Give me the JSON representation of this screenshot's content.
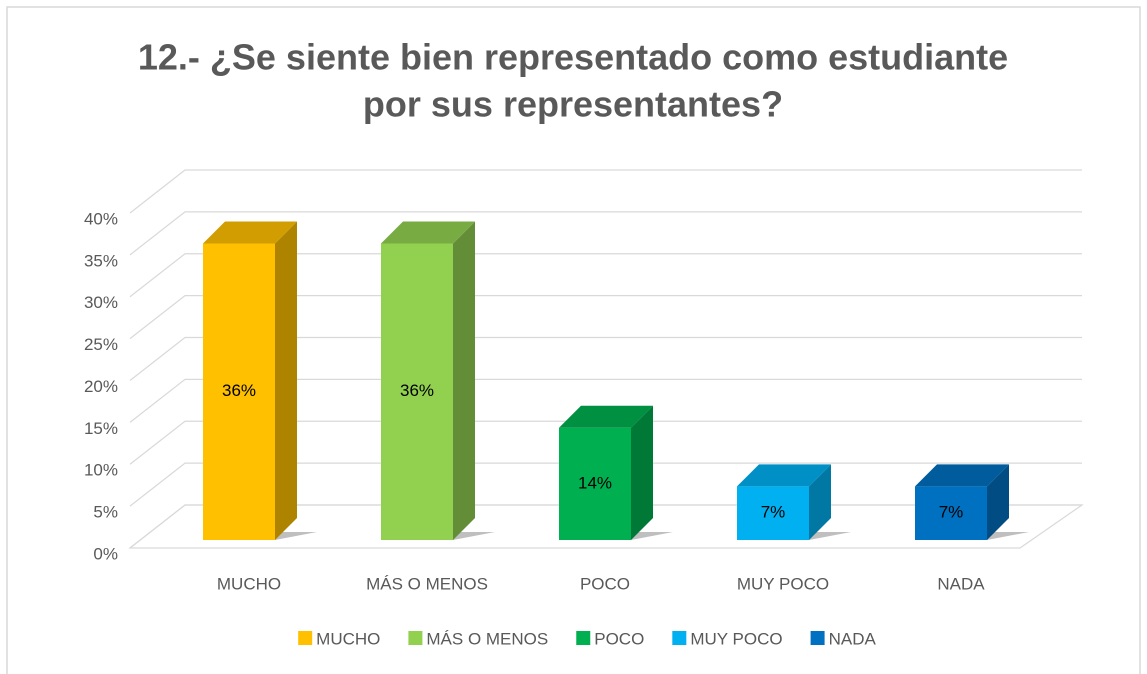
{
  "chart_data": {
    "type": "bar3d",
    "title": [
      "12.- ¿Se siente bien representado como estudiante",
      "por sus representantes?"
    ],
    "categories": [
      "MUCHO",
      "MÁS O MENOS",
      "POCO",
      "MUY POCO",
      "NADA"
    ],
    "values": [
      36,
      36,
      14,
      7,
      7
    ],
    "value_labels": [
      "36%",
      "36%",
      "14%",
      "7%",
      "7%"
    ],
    "colors": [
      "#ffc000",
      "#92d050",
      "#00b050",
      "#00b0f0",
      "#0070c0"
    ],
    "ylim": [
      0,
      40
    ],
    "yticks": [
      {
        "value": 0,
        "label": "0%"
      },
      {
        "value": 5,
        "label": "5%"
      },
      {
        "value": 10,
        "label": "10%"
      },
      {
        "value": 15,
        "label": "15%"
      },
      {
        "value": 20,
        "label": "20%"
      },
      {
        "value": 25,
        "label": "25%"
      },
      {
        "value": 30,
        "label": "30%"
      },
      {
        "value": 35,
        "label": "35%"
      },
      {
        "value": 40,
        "label": "40%"
      }
    ],
    "grid": true,
    "legend": "bottom"
  }
}
